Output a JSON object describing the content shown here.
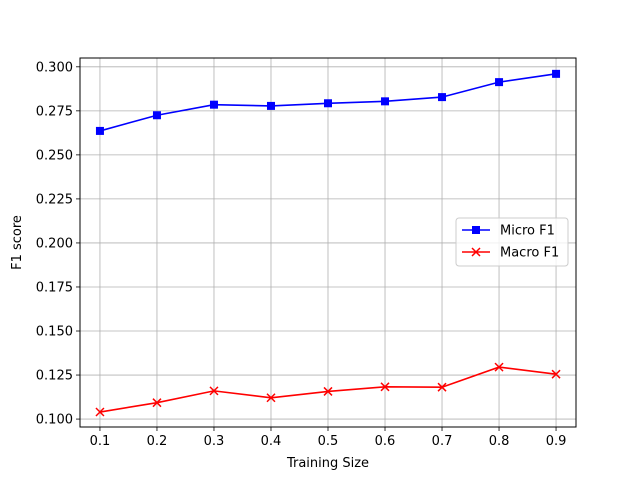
{
  "chart_data": {
    "type": "line",
    "xlabel": "Training Size",
    "ylabel": "F1 score",
    "x": [
      0.1,
      0.2,
      0.3,
      0.4,
      0.5,
      0.6,
      0.7,
      0.8,
      0.9
    ],
    "x_ticks": [
      "0.1",
      "0.2",
      "0.3",
      "0.4",
      "0.5",
      "0.6",
      "0.7",
      "0.8",
      "0.9"
    ],
    "xlim": [
      0.065,
      0.935
    ],
    "ylim": [
      0.0955,
      0.305
    ],
    "y_ticks": [
      "0.100",
      "0.125",
      "0.150",
      "0.175",
      "0.200",
      "0.225",
      "0.250",
      "0.275",
      "0.300"
    ],
    "grid": true,
    "legend_position": "center-right",
    "series": [
      {
        "name": "Micro F1",
        "color": "#0000ff",
        "marker": "square",
        "values": [
          0.2636,
          0.2725,
          0.2785,
          0.2778,
          0.2793,
          0.2804,
          0.2828,
          0.2913,
          0.296
        ]
      },
      {
        "name": "Macro F1",
        "color": "#ff0000",
        "marker": "x",
        "values": [
          0.104,
          0.1093,
          0.116,
          0.1121,
          0.1157,
          0.1183,
          0.1181,
          0.1295,
          0.1255
        ]
      }
    ]
  }
}
